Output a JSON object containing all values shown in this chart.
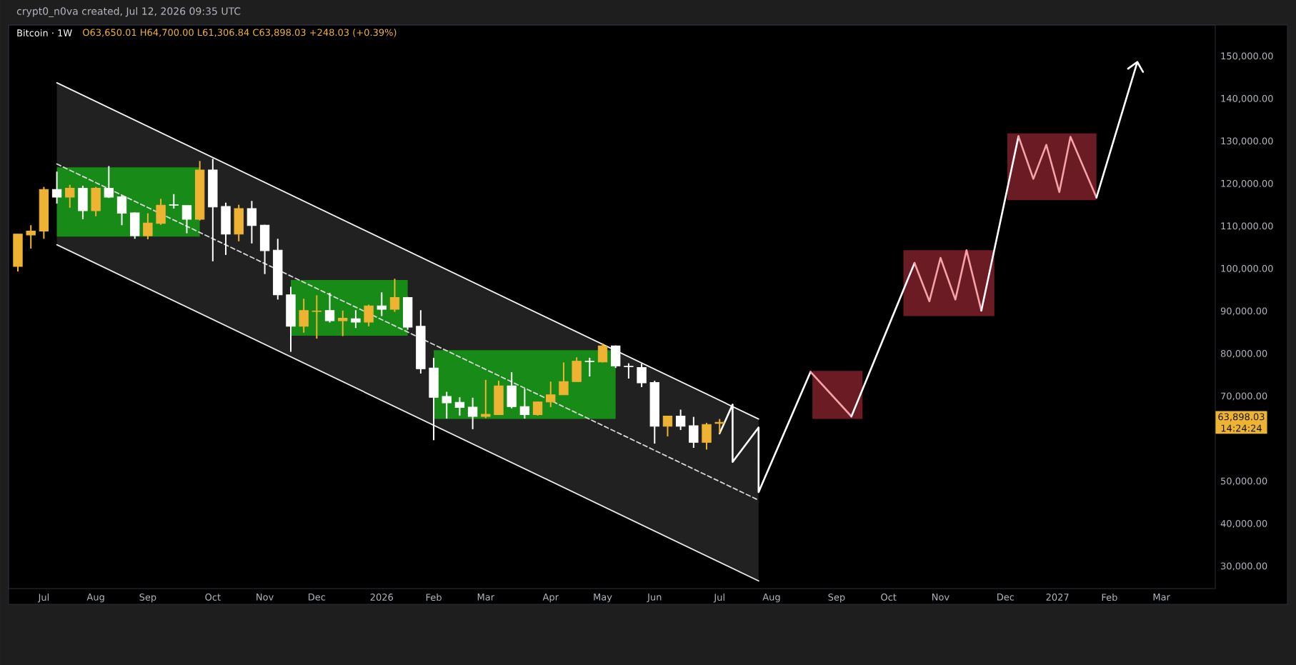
{
  "chart_data": {
    "type": "candlestick",
    "title": "Bitcoin · 1W",
    "subtitle": "O63,650.01  H64,700.00  L61,306.84  C63,898.03  +248.03 (+0.39%)",
    "annotations": [
      "crypt0_n0va created, Jul 12, 2026 09:35 UTC",
      "63,898.03",
      "14:24:24"
    ],
    "x": [
      "2025-06-23",
      "2025-06-30",
      "2025-07-07",
      "2025-07-14",
      "2025-07-21",
      "2025-07-28",
      "2025-08-04",
      "2025-08-11",
      "2025-08-18",
      "2025-08-25",
      "2025-09-01",
      "2025-09-08",
      "2025-09-15",
      "2025-09-22",
      "2025-09-29",
      "2025-10-06",
      "2025-10-13",
      "2025-10-20",
      "2025-10-27",
      "2025-11-03",
      "2025-11-10",
      "2025-11-17",
      "2025-11-24",
      "2025-12-01",
      "2025-12-08",
      "2025-12-15",
      "2025-12-22",
      "2025-12-29",
      "2026-01-05",
      "2026-01-12",
      "2026-01-19",
      "2026-01-26",
      "2026-02-02",
      "2026-02-09",
      "2026-02-16",
      "2026-02-23",
      "2026-03-02",
      "2026-03-09",
      "2026-03-16",
      "2026-03-23",
      "2026-03-30",
      "2026-04-06",
      "2026-04-13",
      "2026-04-20",
      "2026-04-27",
      "2026-05-04",
      "2026-05-11",
      "2026-05-18",
      "2026-05-25",
      "2026-06-01",
      "2026-06-08",
      "2026-06-15",
      "2026-06-22",
      "2026-06-29",
      "2026-07-06"
    ],
    "ohlc": [
      [
        100600,
        108200,
        99400,
        108200
      ],
      [
        108000,
        110300,
        104800,
        108900
      ],
      [
        108900,
        119300,
        107100,
        118700
      ],
      [
        118700,
        122900,
        115400,
        116900
      ],
      [
        116900,
        119800,
        114400,
        119000
      ],
      [
        119000,
        119600,
        111700,
        113700
      ],
      [
        113700,
        119300,
        112400,
        119000
      ],
      [
        119000,
        124200,
        116700,
        116900
      ],
      [
        117000,
        117300,
        110300,
        113100
      ],
      [
        113200,
        113300,
        107100,
        107800
      ],
      [
        107800,
        113100,
        107000,
        110800
      ],
      [
        110700,
        116500,
        110400,
        115000
      ],
      [
        115100,
        117600,
        114200,
        115000
      ],
      [
        114900,
        114900,
        108400,
        111700
      ],
      [
        111700,
        125400,
        111400,
        123300
      ],
      [
        123300,
        125900,
        101800,
        114600
      ],
      [
        114700,
        115600,
        103300,
        108200
      ],
      [
        108200,
        115100,
        106500,
        114200
      ],
      [
        114200,
        116000,
        106000,
        110200
      ],
      [
        110300,
        110400,
        98800,
        104300
      ],
      [
        104400,
        107100,
        92800,
        93900
      ],
      [
        93900,
        95800,
        80500,
        86500
      ],
      [
        86500,
        93000,
        85000,
        90200
      ],
      [
        90000,
        93800,
        83600,
        90100
      ],
      [
        90200,
        94400,
        87400,
        87800
      ],
      [
        87800,
        90200,
        84200,
        88400
      ],
      [
        88300,
        90300,
        86100,
        87500
      ],
      [
        87500,
        91600,
        86500,
        91300
      ],
      [
        91300,
        94500,
        88900,
        90500
      ],
      [
        90500,
        97700,
        89900,
        93300
      ],
      [
        93300,
        93400,
        85700,
        86300
      ],
      [
        86500,
        90300,
        75400,
        76500
      ],
      [
        76700,
        79100,
        59700,
        69800
      ],
      [
        70000,
        71100,
        64800,
        68500
      ],
      [
        68600,
        69800,
        65500,
        67400
      ],
      [
        67500,
        69700,
        62300,
        65300
      ],
      [
        65300,
        73900,
        64900,
        65800
      ],
      [
        65700,
        73700,
        65700,
        72500
      ],
      [
        72500,
        75700,
        67200,
        67600
      ],
      [
        67600,
        71800,
        64800,
        65700
      ],
      [
        65700,
        68800,
        65500,
        68700
      ],
      [
        68700,
        73500,
        67500,
        70400
      ],
      [
        70400,
        78000,
        70400,
        73500
      ],
      [
        73500,
        79200,
        73500,
        78300
      ],
      [
        78300,
        79100,
        74700,
        78200
      ],
      [
        78100,
        82500,
        78000,
        81900
      ],
      [
        81900,
        82000,
        76700,
        77200
      ],
      [
        77100,
        77800,
        74200,
        77000
      ],
      [
        76800,
        77700,
        72200,
        73200
      ],
      [
        73300,
        73700,
        58900,
        63000
      ],
      [
        63000,
        65400,
        60600,
        65400
      ],
      [
        65400,
        66900,
        62100,
        63000
      ],
      [
        63100,
        65200,
        57900,
        59200
      ],
      [
        59200,
        63800,
        57500,
        63400
      ],
      [
        63650.01,
        64700,
        61306.84,
        63898.03
      ]
    ],
    "colors": [
      "#eeb332",
      "#eeb332",
      "#eeb332",
      "#ffffff",
      "#eeb332",
      "#ffffff",
      "#eeb332",
      "#ffffff",
      "#ffffff",
      "#ffffff",
      "#eeb332",
      "#eeb332",
      "#ffffff",
      "#ffffff",
      "#eeb332",
      "#ffffff",
      "#ffffff",
      "#eeb332",
      "#ffffff",
      "#ffffff",
      "#ffffff",
      "#ffffff",
      "#eeb332",
      "#eeb332",
      "#ffffff",
      "#eeb332",
      "#ffffff",
      "#eeb332",
      "#ffffff",
      "#eeb332",
      "#ffffff",
      "#ffffff",
      "#ffffff",
      "#ffffff",
      "#ffffff",
      "#ffffff",
      "#eeb332",
      "#eeb332",
      "#ffffff",
      "#ffffff",
      "#eeb332",
      "#eeb332",
      "#eeb332",
      "#eeb332",
      "#ffffff",
      "#eeb332",
      "#ffffff",
      "#ffffff",
      "#ffffff",
      "#ffffff",
      "#eeb332",
      "#ffffff",
      "#ffffff",
      "#eeb332",
      "#eeb332"
    ],
    "series": [
      {
        "type": "line",
        "color": "#d8d8d8",
        "line_style": "dashed",
        "x": [
          "2025-07-14",
          "2026-07-27"
        ],
        "values": [
          124700,
          45600
        ]
      },
      {
        "type": "line",
        "color": "#f4f4f4",
        "x": [
          "2025-07-14",
          "2026-07-27"
        ],
        "values": [
          143800,
          64700
        ]
      },
      {
        "type": "line",
        "color": "#eaeaea",
        "x": [
          "2025-07-14",
          "2026-07-27"
        ],
        "values": [
          105700,
          26600
        ]
      },
      {
        "type": "line",
        "color": "#ffffff",
        "x": [
          "2026-07-06",
          "2026-07-13",
          "2026-07-13",
          "2026-07-27",
          "2026-07-27",
          "2026-08-24"
        ],
        "values": [
          61300,
          68100,
          54600,
          62700,
          47500,
          75800
        ]
      },
      {
        "type": "line",
        "color": "#f7a1a8",
        "x": [
          "2026-08-24",
          "2026-09-15"
        ],
        "values": [
          75800,
          65300
        ]
      },
      {
        "type": "line",
        "color": "#ffffff",
        "x": [
          "2026-09-15",
          "2026-10-19"
        ],
        "values": [
          65300,
          101400
        ]
      },
      {
        "type": "line",
        "color": "#f7a1a8",
        "x": [
          "2026-10-19",
          "2026-10-27",
          "2026-11-02",
          "2026-11-10",
          "2026-11-16",
          "2026-11-24"
        ],
        "values": [
          101400,
          92400,
          102600,
          92800,
          104400,
          90200
        ]
      },
      {
        "type": "line",
        "color": "#ffffff",
        "x": [
          "2026-11-24",
          "2026-12-14"
        ],
        "values": [
          90200,
          131200
        ]
      },
      {
        "type": "line",
        "color": "#f7a1a8",
        "x": [
          "2026-12-14",
          "2026-12-22",
          "2026-12-29",
          "2027-01-05",
          "2027-01-11",
          "2027-01-25"
        ],
        "values": [
          131200,
          121200,
          129200,
          118100,
          131100,
          116800
        ]
      }
    ],
    "xlim": [
      "2025-06-18",
      "2027-03-30"
    ],
    "xticks": [
      {
        "value": "2025-07-07",
        "label": "Jul"
      },
      {
        "value": "2025-08-04",
        "label": "Aug"
      },
      {
        "value": "2025-09-01",
        "label": "Sep"
      },
      {
        "value": "2025-10-06",
        "label": "Oct"
      },
      {
        "value": "2025-11-03",
        "label": "Nov"
      },
      {
        "value": "2025-12-01",
        "label": "Dec"
      },
      {
        "value": "2026-01-05",
        "label": "2026"
      },
      {
        "value": "2026-02-02",
        "label": "Feb"
      },
      {
        "value": "2026-03-02",
        "label": "Mar"
      },
      {
        "value": "2026-04-06",
        "label": "Apr"
      },
      {
        "value": "2026-05-04",
        "label": "May"
      },
      {
        "value": "2026-06-01",
        "label": "Jun"
      },
      {
        "value": "2026-07-06",
        "label": "Jul"
      },
      {
        "value": "2026-08-03",
        "label": "Aug"
      },
      {
        "value": "2026-09-07",
        "label": "Sep"
      },
      {
        "value": "2026-10-05",
        "label": "Oct"
      },
      {
        "value": "2026-11-02",
        "label": "Nov"
      },
      {
        "value": "2026-12-07",
        "label": "Dec"
      },
      {
        "value": "2027-01-04",
        "label": "2027"
      },
      {
        "value": "2027-02-01",
        "label": "Feb"
      },
      {
        "value": "2027-03-01",
        "label": "Mar"
      }
    ],
    "ylim": [
      24800,
      157400
    ],
    "yticks": [
      {
        "value": 30000,
        "label": "30,000.00"
      },
      {
        "value": 40000,
        "label": "40,000.00"
      },
      {
        "value": 50000,
        "label": "50,000.00"
      },
      {
        "value": 70000,
        "label": "70,000.00"
      },
      {
        "value": 80000,
        "label": "80,000.00"
      },
      {
        "value": 90000,
        "label": "90,000.00"
      },
      {
        "value": 100000,
        "label": "100,000.00"
      },
      {
        "value": 110000,
        "label": "110,000.00"
      },
      {
        "value": 120000,
        "label": "120,000.00"
      },
      {
        "value": 130000,
        "label": "130,000.00"
      },
      {
        "value": 140000,
        "label": "140,000.00"
      },
      {
        "value": 150000,
        "label": "150,000.00"
      }
    ]
  }
}
